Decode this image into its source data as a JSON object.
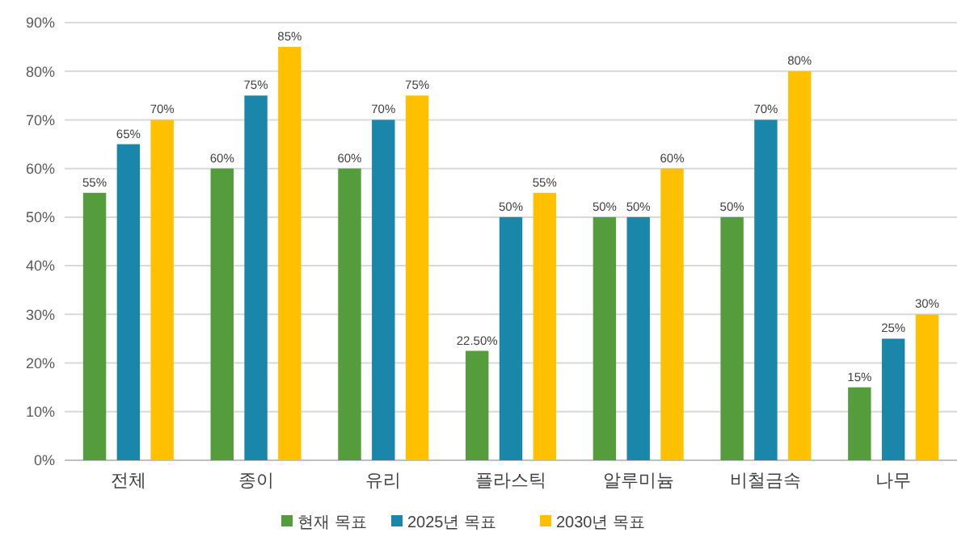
{
  "chart_data": {
    "type": "bar",
    "categories": [
      "전체",
      "종이",
      "유리",
      "플라스틱",
      "알루미늄",
      "비철금속",
      "나무"
    ],
    "series": [
      {
        "name": "현재 목표",
        "color": "#559d3c",
        "values": [
          55,
          60,
          60,
          22.5,
          50,
          50,
          15
        ],
        "value_labels": [
          "55%",
          "60%",
          "60%",
          "22.50%",
          "50%",
          "50%",
          "15%"
        ]
      },
      {
        "name": "2025년 목표",
        "color": "#1a86a9",
        "values": [
          65,
          75,
          70,
          50,
          50,
          70,
          25
        ],
        "value_labels": [
          "65%",
          "75%",
          "70%",
          "50%",
          "50%",
          "70%",
          "25%"
        ]
      },
      {
        "name": "2030년 목표",
        "color": "#ffc000",
        "values": [
          70,
          85,
          75,
          55,
          60,
          80,
          30
        ],
        "value_labels": [
          "70%",
          "85%",
          "75%",
          "55%",
          "60%",
          "80%",
          "30%"
        ]
      }
    ],
    "ylim": [
      0,
      90
    ],
    "yticks": [
      {
        "value": 0,
        "label": "0%"
      },
      {
        "value": 10,
        "label": "10%"
      },
      {
        "value": 20,
        "label": "20%"
      },
      {
        "value": 30,
        "label": "30%"
      },
      {
        "value": 40,
        "label": "40%"
      },
      {
        "value": 50,
        "label": "50%"
      },
      {
        "value": 60,
        "label": "60%"
      },
      {
        "value": 70,
        "label": "70%"
      },
      {
        "value": 80,
        "label": "80%"
      },
      {
        "value": 90,
        "label": "90%"
      }
    ],
    "grid": "y",
    "legend": "bottom"
  }
}
